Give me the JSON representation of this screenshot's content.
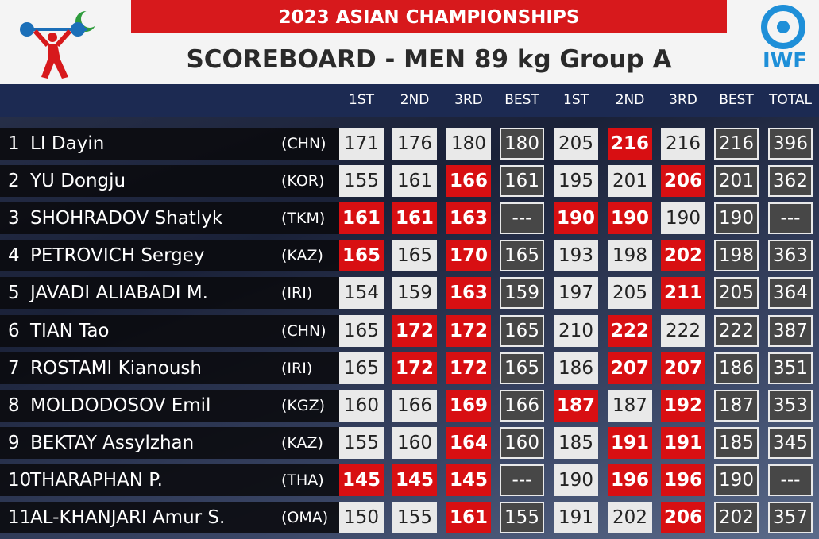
{
  "header": {
    "event": "2023 ASIAN CHAMPIONSHIPS",
    "title": "SCOREBOARD - MEN 89 kg Group A",
    "logo_text": "IWF"
  },
  "table": {
    "columns": [
      "1ST",
      "2ND",
      "3RD",
      "BEST",
      "1ST",
      "2ND",
      "3RD",
      "BEST",
      "TOTAL"
    ],
    "rows": [
      {
        "rank": 1,
        "name": "LI Dayin",
        "nation": "(CHN)",
        "snatch": [
          {
            "value": 171,
            "good": true
          },
          {
            "value": 176,
            "good": true
          },
          {
            "value": 180,
            "good": true
          }
        ],
        "snatch_best": 180,
        "cj": [
          {
            "value": 205,
            "good": true
          },
          {
            "value": 216,
            "good": false
          },
          {
            "value": 216,
            "good": true
          }
        ],
        "cj_best": 216,
        "total": 396
      },
      {
        "rank": 2,
        "name": "YU Dongju",
        "nation": "(KOR)",
        "snatch": [
          {
            "value": 155,
            "good": true
          },
          {
            "value": 161,
            "good": true
          },
          {
            "value": 166,
            "good": false
          }
        ],
        "snatch_best": 161,
        "cj": [
          {
            "value": 195,
            "good": true
          },
          {
            "value": 201,
            "good": true
          },
          {
            "value": 206,
            "good": false
          }
        ],
        "cj_best": 201,
        "total": 362
      },
      {
        "rank": 3,
        "name": "SHOHRADOV Shatlyk",
        "nation": "(TKM)",
        "snatch": [
          {
            "value": 161,
            "good": false
          },
          {
            "value": 161,
            "good": false
          },
          {
            "value": 163,
            "good": false
          }
        ],
        "snatch_best": "---",
        "cj": [
          {
            "value": 190,
            "good": false
          },
          {
            "value": 190,
            "good": false
          },
          {
            "value": 190,
            "good": true
          }
        ],
        "cj_best": 190,
        "total": "---"
      },
      {
        "rank": 4,
        "name": "PETROVICH Sergey",
        "nation": "(KAZ)",
        "snatch": [
          {
            "value": 165,
            "good": false
          },
          {
            "value": 165,
            "good": true
          },
          {
            "value": 170,
            "good": false
          }
        ],
        "snatch_best": 165,
        "cj": [
          {
            "value": 193,
            "good": true
          },
          {
            "value": 198,
            "good": true
          },
          {
            "value": 202,
            "good": false
          }
        ],
        "cj_best": 198,
        "total": 363
      },
      {
        "rank": 5,
        "name": "JAVADI ALIABADI M.",
        "nation": "(IRI)",
        "snatch": [
          {
            "value": 154,
            "good": true
          },
          {
            "value": 159,
            "good": true
          },
          {
            "value": 163,
            "good": false
          }
        ],
        "snatch_best": 159,
        "cj": [
          {
            "value": 197,
            "good": true
          },
          {
            "value": 205,
            "good": true
          },
          {
            "value": 211,
            "good": false
          }
        ],
        "cj_best": 205,
        "total": 364
      },
      {
        "rank": 6,
        "name": "TIAN Tao",
        "nation": "(CHN)",
        "snatch": [
          {
            "value": 165,
            "good": true
          },
          {
            "value": 172,
            "good": false
          },
          {
            "value": 172,
            "good": false
          }
        ],
        "snatch_best": 165,
        "cj": [
          {
            "value": 210,
            "good": true
          },
          {
            "value": 222,
            "good": false
          },
          {
            "value": 222,
            "good": true
          }
        ],
        "cj_best": 222,
        "total": 387
      },
      {
        "rank": 7,
        "name": "ROSTAMI Kianoush",
        "nation": "(IRI)",
        "snatch": [
          {
            "value": 165,
            "good": true
          },
          {
            "value": 172,
            "good": false
          },
          {
            "value": 172,
            "good": false
          }
        ],
        "snatch_best": 165,
        "cj": [
          {
            "value": 186,
            "good": true
          },
          {
            "value": 207,
            "good": false
          },
          {
            "value": 207,
            "good": false
          }
        ],
        "cj_best": 186,
        "total": 351
      },
      {
        "rank": 8,
        "name": "MOLDODOSOV Emil",
        "nation": "(KGZ)",
        "snatch": [
          {
            "value": 160,
            "good": true
          },
          {
            "value": 166,
            "good": true
          },
          {
            "value": 169,
            "good": false
          }
        ],
        "snatch_best": 166,
        "cj": [
          {
            "value": 187,
            "good": false
          },
          {
            "value": 187,
            "good": true
          },
          {
            "value": 192,
            "good": false
          }
        ],
        "cj_best": 187,
        "total": 353
      },
      {
        "rank": 9,
        "name": "BEKTAY Assylzhan",
        "nation": "(KAZ)",
        "snatch": [
          {
            "value": 155,
            "good": true
          },
          {
            "value": 160,
            "good": true
          },
          {
            "value": 164,
            "good": false
          }
        ],
        "snatch_best": 160,
        "cj": [
          {
            "value": 185,
            "good": true
          },
          {
            "value": 191,
            "good": false
          },
          {
            "value": 191,
            "good": false
          }
        ],
        "cj_best": 185,
        "total": 345
      },
      {
        "rank": 10,
        "name": "THARAPHAN P.",
        "nation": "(THA)",
        "snatch": [
          {
            "value": 145,
            "good": false
          },
          {
            "value": 145,
            "good": false
          },
          {
            "value": 145,
            "good": false
          }
        ],
        "snatch_best": "---",
        "cj": [
          {
            "value": 190,
            "good": true
          },
          {
            "value": 196,
            "good": false
          },
          {
            "value": 196,
            "good": false
          }
        ],
        "cj_best": 190,
        "total": "---"
      },
      {
        "rank": 11,
        "name": "AL-KHANJARI Amur S.",
        "nation": "(OMA)",
        "snatch": [
          {
            "value": 150,
            "good": true
          },
          {
            "value": 155,
            "good": true
          },
          {
            "value": 161,
            "good": false
          }
        ],
        "snatch_best": 155,
        "cj": [
          {
            "value": 191,
            "good": true
          },
          {
            "value": 202,
            "good": true
          },
          {
            "value": 206,
            "good": false
          }
        ],
        "cj_best": 202,
        "total": 357
      }
    ]
  }
}
